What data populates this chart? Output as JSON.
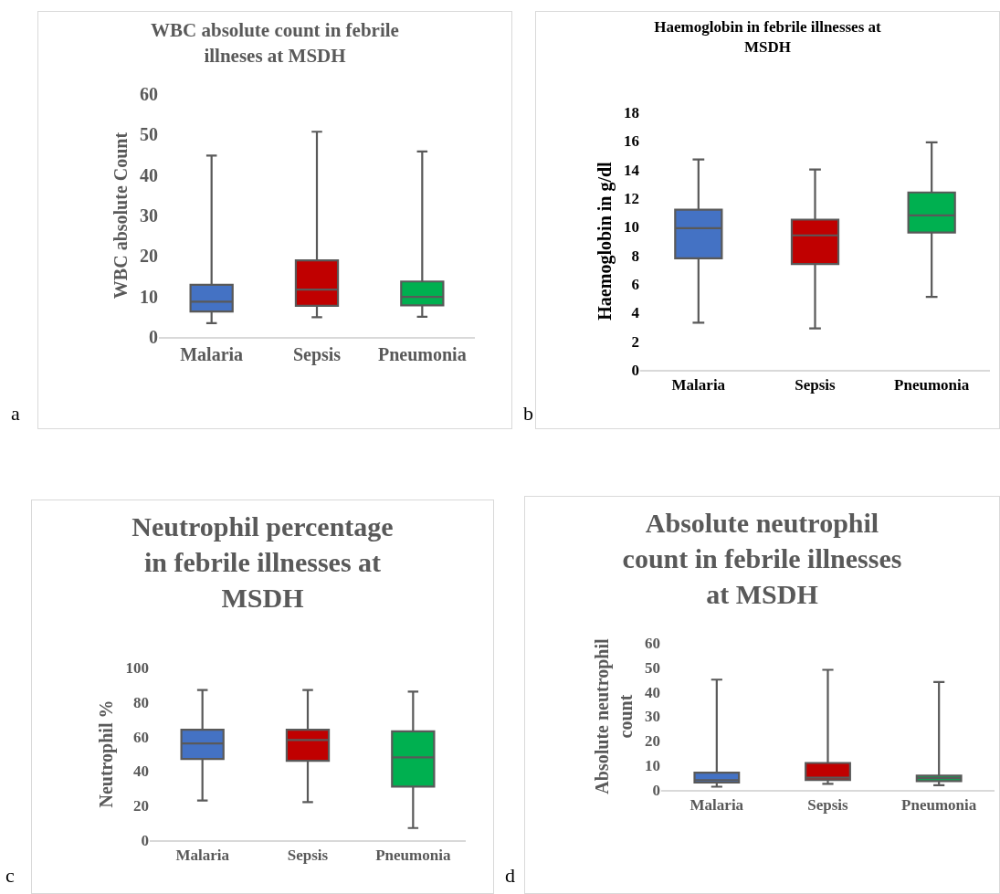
{
  "chart_data": [
    {
      "type": "box",
      "title": "WBC absolute count in febrile illneses at MSDH",
      "ylabel": "WBC absolute Count",
      "categories": [
        "Malaria",
        "Sepsis",
        "Pneumonia"
      ],
      "colors": [
        "#4472c4",
        "#c00000",
        "#00b050"
      ],
      "boxes": [
        {
          "low": 3.4,
          "q1": 6.3,
          "median": 8.7,
          "q3": 12.9,
          "high": 44.8
        },
        {
          "low": 4.9,
          "q1": 7.7,
          "median": 11.7,
          "q3": 18.9,
          "high": 50.7
        },
        {
          "low": 5.0,
          "q1": 7.8,
          "median": 9.9,
          "q3": 13.7,
          "high": 45.8
        }
      ],
      "ylim": [
        0,
        60
      ],
      "yticks": [
        0,
        10,
        20,
        30,
        40,
        50,
        60
      ],
      "annotations": [
        "a"
      ]
    },
    {
      "type": "box",
      "title": "Haemoglobin in febrile illnesses at MSDH",
      "ylabel": "Haemoglobin in g/dl",
      "categories": [
        "Malaria",
        "Sepsis",
        "Pneumonia"
      ],
      "colors": [
        "#4472c4",
        "#c00000",
        "#00b050"
      ],
      "boxes": [
        {
          "low": 3.3,
          "q1": 7.8,
          "median": 9.9,
          "q3": 11.2,
          "high": 14.7
        },
        {
          "low": 2.9,
          "q1": 7.4,
          "median": 9.4,
          "q3": 10.5,
          "high": 14.0
        },
        {
          "low": 5.1,
          "q1": 9.6,
          "median": 10.8,
          "q3": 12.4,
          "high": 15.9
        }
      ],
      "ylim": [
        0,
        18
      ],
      "yticks": [
        0,
        2,
        4,
        6,
        8,
        10,
        12,
        14,
        16,
        18
      ],
      "annotations": [
        "b"
      ]
    },
    {
      "type": "box",
      "title": "Neutrophil percentage in febrile illnesses at MSDH",
      "ylabel": "Neutrophil %",
      "categories": [
        "Malaria",
        "Sepsis",
        "Pneumonia"
      ],
      "colors": [
        "#4472c4",
        "#c00000",
        "#00b050"
      ],
      "boxes": [
        {
          "low": 23,
          "q1": 47,
          "median": 56,
          "q3": 64,
          "high": 87
        },
        {
          "low": 22,
          "q1": 46,
          "median": 58,
          "q3": 64,
          "high": 87
        },
        {
          "low": 7,
          "q1": 31,
          "median": 48,
          "q3": 63,
          "high": 86
        }
      ],
      "ylim": [
        0,
        100
      ],
      "yticks": [
        0,
        20,
        40,
        60,
        80,
        100
      ],
      "annotations": [
        "c"
      ]
    },
    {
      "type": "box",
      "title": "Absolute neutrophil count in febrile illnesses at MSDH",
      "ylabel": "Absolute neutrophil count",
      "categories": [
        "Malaria",
        "Sepsis",
        "Pneumonia"
      ],
      "colors": [
        "#4472c4",
        "#c00000",
        "#00b050"
      ],
      "boxes": [
        {
          "low": 1.3,
          "q1": 3,
          "median": 4,
          "q3": 7,
          "high": 45
        },
        {
          "low": 2.5,
          "q1": 4,
          "median": 5,
          "q3": 11,
          "high": 49
        },
        {
          "low": 1.9,
          "q1": 3.6,
          "median": 4.8,
          "q3": 5.8,
          "high": 44
        }
      ],
      "ylim": [
        0,
        60
      ],
      "yticks": [
        0,
        10,
        20,
        30,
        40,
        50,
        60
      ],
      "annotations": [
        "d"
      ]
    }
  ]
}
